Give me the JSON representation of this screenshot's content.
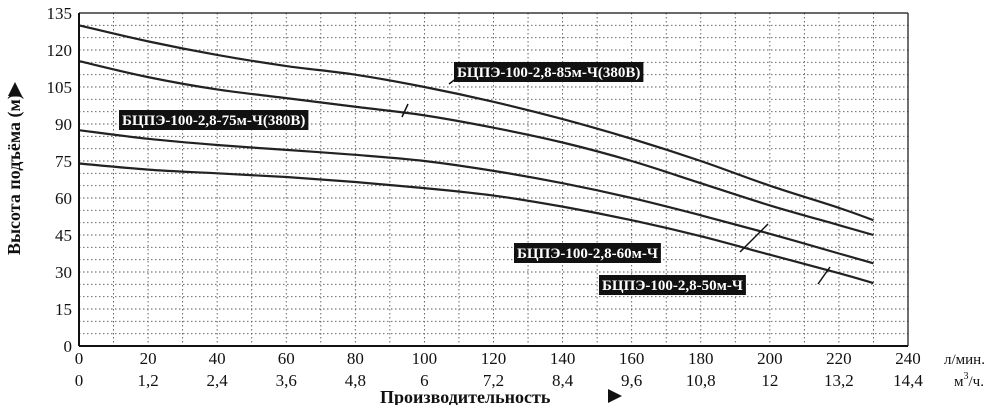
{
  "chart_data": {
    "type": "line",
    "title": "",
    "ylabel": "Высота подъёма (м)",
    "xlabel": "Производительность",
    "ylim": [
      0,
      135
    ],
    "xlim": [
      0,
      240
    ],
    "grid": true,
    "y_ticks": [
      "0",
      "15",
      "30",
      "45",
      "60",
      "75",
      "90",
      "105",
      "120",
      "135"
    ],
    "x_ticks_lmin": [
      "0",
      "20",
      "40",
      "60",
      "80",
      "100",
      "120",
      "140",
      "160",
      "180",
      "200",
      "220",
      "240"
    ],
    "x_ticks_m3h": [
      "0",
      "1,2",
      "2,4",
      "3,6",
      "4,8",
      "6",
      "7,2",
      "8,4",
      "9,6",
      "10,8",
      "12",
      "13,2",
      "14,4"
    ],
    "x_unit_lmin": "л/мин.",
    "x_unit_m3h_prefix": "м",
    "x_unit_m3h_sup": "3",
    "x_unit_m3h_suffix": "/ч.",
    "series": [
      {
        "name": "БЦПЭ-100-2,8-85м-Ч(380В)",
        "x": [
          0,
          20,
          40,
          60,
          80,
          100,
          120,
          140,
          160,
          180,
          200,
          220,
          230
        ],
        "y": [
          130,
          123.5,
          118,
          113.5,
          110,
          105,
          99,
          92,
          84,
          75,
          65,
          56,
          51
        ]
      },
      {
        "name": "БЦПЭ-100-2,8-75м-Ч(380В)",
        "x": [
          0,
          20,
          40,
          60,
          80,
          100,
          120,
          140,
          160,
          180,
          200,
          220,
          230
        ],
        "y": [
          115.5,
          109,
          104,
          100.5,
          97,
          93.5,
          88.5,
          82.5,
          75,
          66,
          57,
          49,
          45
        ]
      },
      {
        "name": "БЦПЭ-100-2,8-60м-Ч",
        "x": [
          0,
          20,
          40,
          60,
          80,
          100,
          120,
          140,
          160,
          180,
          200,
          220,
          230
        ],
        "y": [
          87.5,
          84,
          81.5,
          79.5,
          77.5,
          75,
          71,
          66,
          60,
          53,
          45.5,
          37.5,
          33.5
        ]
      },
      {
        "name": "БЦПЭ-100-2,8-50м-Ч",
        "x": [
          0,
          20,
          40,
          60,
          80,
          100,
          120,
          140,
          160,
          180,
          200,
          220,
          230
        ],
        "y": [
          74,
          71.5,
          70,
          68.5,
          66.5,
          64,
          61,
          56.5,
          51,
          44.5,
          37,
          29.5,
          25.5
        ]
      }
    ]
  }
}
